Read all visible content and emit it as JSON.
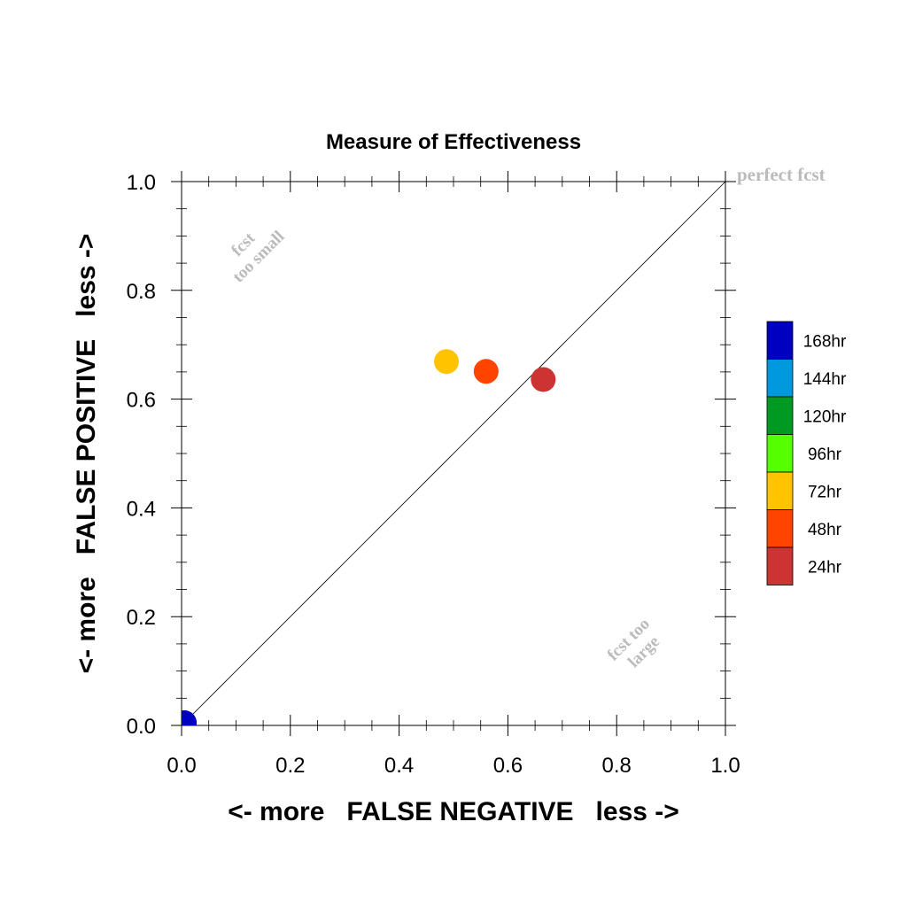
{
  "chart_data": {
    "type": "scatter",
    "title": "Measure of Effectiveness",
    "xlabel": "<- more   FALSE NEGATIVE   less ->",
    "ylabel": "<- more   FALSE POSITIVE   less ->",
    "xlim": [
      0,
      1
    ],
    "ylim": [
      0,
      1
    ],
    "x_ticks": [
      "0.0",
      "0.2",
      "0.4",
      "0.6",
      "0.8",
      "1.0"
    ],
    "y_ticks": [
      "0.0",
      "0.2",
      "0.4",
      "0.6",
      "0.8",
      "1.0"
    ],
    "grid": false,
    "diagonal_line": true,
    "annotations": {
      "perfect": "perfect fcst",
      "small_line1": "fcst",
      "small_line2": "too small",
      "large_line1": "fcst too",
      "large_line2": "large"
    },
    "legend": {
      "placement": "right",
      "items": [
        {
          "label": "168hr",
          "color": "#0000c0"
        },
        {
          "label": "144hr",
          "color": "#0099dd"
        },
        {
          "label": "120hr",
          "color": "#009922"
        },
        {
          "label": "96hr",
          "color": "#55ff00"
        },
        {
          "label": "72hr",
          "color": "#ffc300"
        },
        {
          "label": "48hr",
          "color": "#ff4400"
        },
        {
          "label": "24hr",
          "color": "#cc3333"
        }
      ]
    },
    "points": [
      {
        "label": "168hr",
        "x": 0.005,
        "y": 0.005,
        "color": "#0000c0"
      },
      {
        "label": "72hr",
        "x": 0.487,
        "y": 0.669,
        "color": "#ffc300"
      },
      {
        "label": "48hr",
        "x": 0.56,
        "y": 0.651,
        "color": "#ff4400"
      },
      {
        "label": "24hr",
        "x": 0.665,
        "y": 0.636,
        "color": "#cc3333"
      }
    ]
  }
}
